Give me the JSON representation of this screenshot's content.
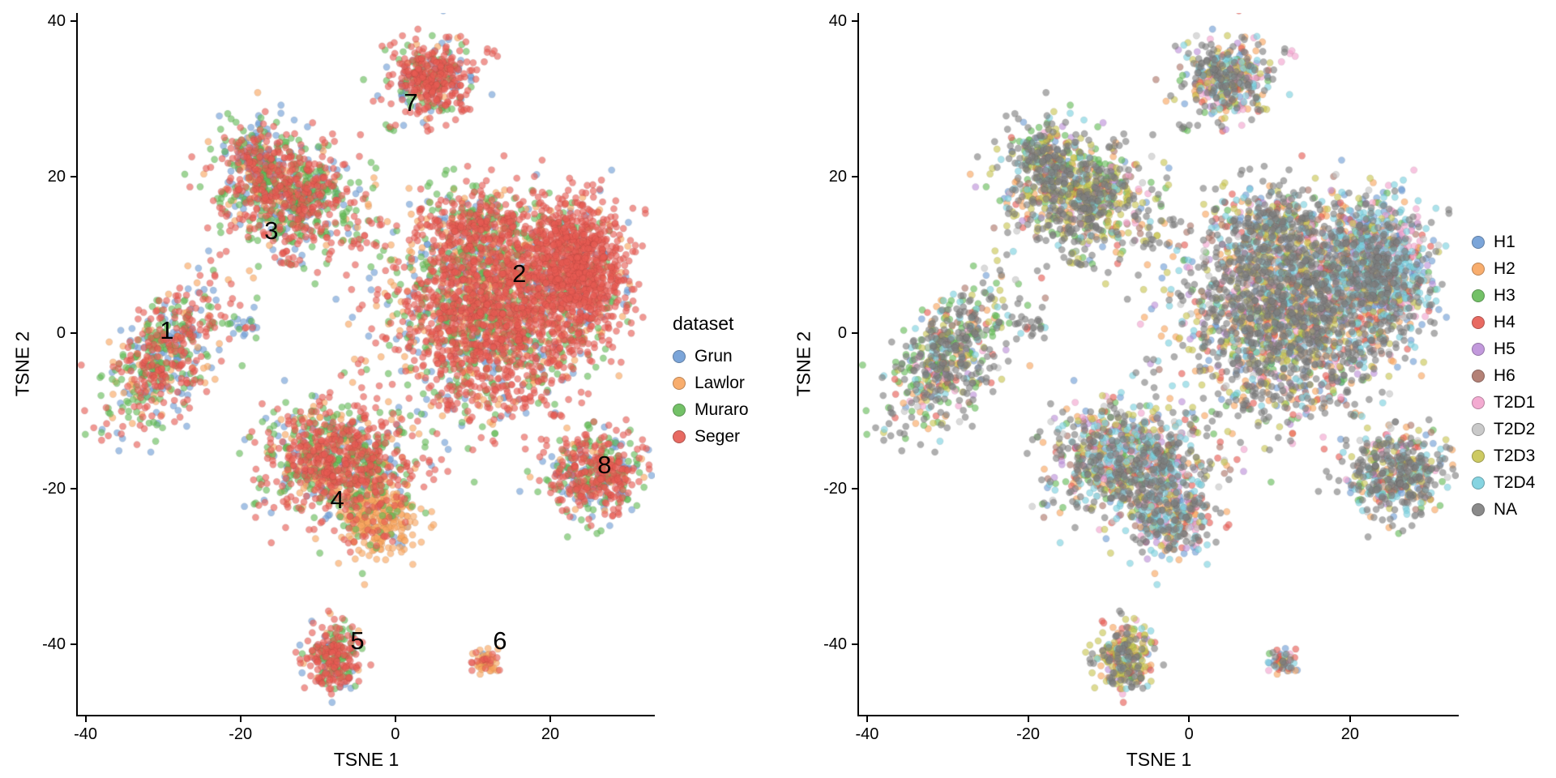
{
  "figure": {
    "background": "#FFFFFF"
  },
  "chart_data": [
    {
      "type": "scatter",
      "title": "",
      "xlabel": "TSNE 1",
      "ylabel": "TSNE 2",
      "xlim": [
        -41,
        33.5
      ],
      "ylim": [
        -49,
        41
      ],
      "xticks": [
        -40,
        -20,
        0,
        20
      ],
      "yticks": [
        -40,
        -20,
        0,
        20,
        40
      ],
      "grid": false,
      "theme": "classic",
      "color_by": "dataset",
      "legend": {
        "title": "dataset",
        "position": "right",
        "entries": [
          {
            "label": "Grun",
            "color": "#6D9CD5"
          },
          {
            "label": "Lawlor",
            "color": "#F8A55E"
          },
          {
            "label": "Muraro",
            "color": "#64BB57"
          },
          {
            "label": "Seger",
            "color": "#E65A52"
          }
        ]
      },
      "annotations": [
        {
          "text": "1",
          "x": -29.5,
          "y": 0.3
        },
        {
          "text": "2",
          "x": 16,
          "y": 7.5
        },
        {
          "text": "3",
          "x": -16,
          "y": 13
        },
        {
          "text": "4",
          "x": -7.5,
          "y": -21.5
        },
        {
          "text": "5",
          "x": -4.9,
          "y": -39.5
        },
        {
          "text": "6",
          "x": 13.5,
          "y": -39.5
        },
        {
          "text": "7",
          "x": 2.0,
          "y": 29.5
        },
        {
          "text": "8",
          "x": 27,
          "y": -17
        }
      ]
    },
    {
      "type": "scatter",
      "title": "",
      "xlabel": "TSNE 1",
      "ylabel": "TSNE 2",
      "xlim": [
        -41,
        33.5
      ],
      "ylim": [
        -49,
        41
      ],
      "xticks": [
        -40,
        -20,
        0,
        20
      ],
      "yticks": [
        -40,
        -20,
        0,
        20,
        40
      ],
      "grid": false,
      "theme": "classic",
      "color_by": "donor",
      "legend": {
        "title": "",
        "position": "right",
        "entries": [
          {
            "label": "H1",
            "color": "#6D9CD5"
          },
          {
            "label": "H2",
            "color": "#F8A55E"
          },
          {
            "label": "H3",
            "color": "#64BB57"
          },
          {
            "label": "H4",
            "color": "#E65A52"
          },
          {
            "label": "H5",
            "color": "#BC8ED9"
          },
          {
            "label": "H6",
            "color": "#AC7468"
          },
          {
            "label": "T2D1",
            "color": "#F2A2CD"
          },
          {
            "label": "T2D2",
            "color": "#C4C4C4"
          },
          {
            "label": "T2D3",
            "color": "#C8C551"
          },
          {
            "label": "T2D4",
            "color": "#79D0DE"
          },
          {
            "label": "NA",
            "color": "#7E7E7E"
          }
        ]
      },
      "annotations": []
    }
  ],
  "points": {
    "seed": 20170821,
    "radius": 4.2,
    "alpha": 0.62,
    "blobs": [
      {
        "n": 550,
        "x": -30,
        "y": -3,
        "sx": 3.2,
        "sy": 4.8,
        "tilt": 0.45,
        "dataset_mix": {
          "Grun": 0.22,
          "Lawlor": 0.13,
          "Muraro": 0.28,
          "Seger": 0.37
        },
        "donor_mix": {
          "NA": 0.4,
          "H3": 0.19,
          "T2D3": 0.08,
          "T2D4": 0.07,
          "H2": 0.06,
          "H4": 0.06,
          "H1": 0.04,
          "T2D2": 0.04,
          "T2D1": 0.02,
          "H5": 0.02,
          "H6": 0.02
        }
      },
      {
        "n": 2200,
        "x": 12.5,
        "y": 3.5,
        "sx": 6.5,
        "sy": 6.5,
        "tilt": 0,
        "dataset_mix": {
          "Seger": 0.52,
          "Muraro": 0.2,
          "Lawlor": 0.17,
          "Grun": 0.11
        },
        "donor_mix": {
          "NA": 0.4,
          "T2D3": 0.11,
          "H2": 0.1,
          "T2D4": 0.07,
          "H1": 0.06,
          "H4": 0.06,
          "H3": 0.05,
          "T2D1": 0.04,
          "T2D2": 0.04,
          "H6": 0.04,
          "H5": 0.03
        }
      },
      {
        "n": 900,
        "x": 23.5,
        "y": 8.5,
        "sx": 3.2,
        "sy": 4.2,
        "tilt": 0,
        "dataset_mix": {
          "Seger": 0.85,
          "Grun": 0.06,
          "Muraro": 0.05,
          "Lawlor": 0.04
        },
        "donor_mix": {
          "T2D4": 0.24,
          "NA": 0.2,
          "H1": 0.15,
          "T2D1": 0.08,
          "H2": 0.08,
          "T2D2": 0.06,
          "H4": 0.06,
          "T2D3": 0.05,
          "H5": 0.03,
          "H3": 0.03,
          "H6": 0.02
        }
      },
      {
        "n": 250,
        "x": 10,
        "y": 13.5,
        "sx": 4.0,
        "sy": 2.6,
        "tilt": 0,
        "dataset_mix": {
          "Seger": 0.5,
          "Muraro": 0.25,
          "Lawlor": 0.15,
          "Grun": 0.1
        },
        "donor_mix": {
          "NA": 0.38,
          "H2": 0.12,
          "T2D3": 0.1,
          "T2D4": 0.08,
          "H1": 0.07,
          "H4": 0.06,
          "H3": 0.06,
          "T2D1": 0.05,
          "H6": 0.04,
          "T2D2": 0.02,
          "H5": 0.02
        }
      },
      {
        "n": 45,
        "x": 16,
        "y": -7,
        "sx": 4.0,
        "sy": 2.6,
        "tilt": 0,
        "dataset_mix": {
          "Seger": 0.7,
          "Muraro": 0.15,
          "Lawlor": 0.1,
          "Grun": 0.05
        },
        "donor_mix": {
          "NA": 0.5,
          "H4": 0.1,
          "H2": 0.1,
          "T2D4": 0.1,
          "T2D3": 0.1,
          "H3": 0.1
        }
      },
      {
        "n": 850,
        "x": -14,
        "y": 18,
        "sx": 4.2,
        "sy": 3.8,
        "tilt": -0.2,
        "dataset_mix": {
          "Seger": 0.42,
          "Muraro": 0.3,
          "Grun": 0.18,
          "Lawlor": 0.1
        },
        "donor_mix": {
          "NA": 0.33,
          "T2D3": 0.2,
          "H3": 0.14,
          "H2": 0.08,
          "H6": 0.05,
          "T2D4": 0.05,
          "H1": 0.04,
          "H4": 0.03,
          "T2D1": 0.03,
          "H5": 0.03,
          "T2D2": 0.02
        }
      },
      {
        "n": 120,
        "x": -18,
        "y": 22.5,
        "sx": 2.0,
        "sy": 2.0,
        "tilt": 0,
        "dataset_mix": {
          "Grun": 0.4,
          "Seger": 0.3,
          "Muraro": 0.3
        },
        "donor_mix": {
          "NA": 0.5,
          "H3": 0.15,
          "T2D3": 0.12,
          "T2D4": 0.08,
          "H1": 0.05,
          "H2": 0.05,
          "H4": 0.05
        }
      },
      {
        "n": 950,
        "x": -7.5,
        "y": -16.5,
        "sx": 4.8,
        "sy": 3.6,
        "tilt": 0,
        "dataset_mix": {
          "Seger": 0.42,
          "Muraro": 0.26,
          "Lawlor": 0.16,
          "Grun": 0.16
        },
        "donor_mix": {
          "NA": 0.26,
          "T2D4": 0.14,
          "H4": 0.09,
          "T2D3": 0.09,
          "H3": 0.08,
          "H2": 0.07,
          "H1": 0.06,
          "H6": 0.06,
          "H5": 0.05,
          "T2D1": 0.05,
          "T2D2": 0.05
        }
      },
      {
        "n": 320,
        "x": -2,
        "y": -24,
        "sx": 2.6,
        "sy": 2.4,
        "tilt": 0,
        "dataset_mix": {
          "Lawlor": 0.78,
          "Seger": 0.12,
          "Muraro": 0.06,
          "Grun": 0.04
        },
        "donor_mix": {
          "NA": 0.28,
          "T2D4": 0.2,
          "H2": 0.1,
          "H4": 0.08,
          "H1": 0.07,
          "T2D3": 0.07,
          "H5": 0.06,
          "H6": 0.05,
          "T2D1": 0.05,
          "T2D2": 0.04
        }
      },
      {
        "n": 260,
        "x": -8,
        "y": -41.5,
        "sx": 1.7,
        "sy": 2.3,
        "tilt": 0,
        "dataset_mix": {
          "Seger": 0.58,
          "Muraro": 0.27,
          "Grun": 0.1,
          "Lawlor": 0.05
        },
        "donor_mix": {
          "NA": 0.29,
          "T2D3": 0.27,
          "H4": 0.12,
          "H2": 0.1,
          "T2D4": 0.06,
          "H3": 0.05,
          "H1": 0.04,
          "T2D1": 0.03,
          "H6": 0.02,
          "H5": 0.01,
          "T2D2": 0.01
        }
      },
      {
        "n": 55,
        "x": 11.5,
        "y": -42,
        "sx": 1.0,
        "sy": 0.8,
        "tilt": 0,
        "dataset_mix": {
          "Lawlor": 0.75,
          "Seger": 0.2,
          "Grun": 0.05
        },
        "donor_mix": {
          "NA": 0.33,
          "H2": 0.2,
          "H1": 0.15,
          "H4": 0.1,
          "T2D4": 0.08,
          "T2D3": 0.06,
          "T2D1": 0.04,
          "H3": 0.04
        }
      },
      {
        "n": 420,
        "x": 4.5,
        "y": 32.5,
        "sx": 2.7,
        "sy": 2.5,
        "tilt": 0,
        "dataset_mix": {
          "Seger": 0.68,
          "Muraro": 0.17,
          "Grun": 0.1,
          "Lawlor": 0.05
        },
        "donor_mix": {
          "NA": 0.29,
          "T2D4": 0.14,
          "H2": 0.12,
          "T2D3": 0.1,
          "H3": 0.07,
          "T2D1": 0.06,
          "H1": 0.06,
          "H4": 0.05,
          "H5": 0.04,
          "H6": 0.04,
          "T2D2": 0.03
        }
      },
      {
        "n": 480,
        "x": 25.5,
        "y": -18,
        "sx": 3.0,
        "sy": 2.7,
        "tilt": 0,
        "dataset_mix": {
          "Seger": 0.52,
          "Muraro": 0.22,
          "Grun": 0.16,
          "Lawlor": 0.1
        },
        "donor_mix": {
          "NA": 0.4,
          "T2D4": 0.1,
          "H3": 0.08,
          "H2": 0.08,
          "T2D3": 0.08,
          "H4": 0.07,
          "H1": 0.05,
          "T2D2": 0.04,
          "H6": 0.04,
          "T2D1": 0.03,
          "H5": 0.03
        }
      },
      {
        "n": 22,
        "x": -19.5,
        "y": 0.5,
        "sx": 0.9,
        "sy": 0.9,
        "tilt": 0,
        "dataset_mix": {
          "Grun": 0.5,
          "Seger": 0.25,
          "Muraro": 0.25
        },
        "donor_mix": {
          "NA": 0.5,
          "H3": 0.2,
          "T2D4": 0.15,
          "H4": 0.15
        }
      },
      {
        "n": 10,
        "x": -5,
        "y": 12,
        "sx": 0.8,
        "sy": 0.6,
        "tilt": 0,
        "dataset_mix": {
          "Seger": 0.8,
          "Muraro": 0.2
        },
        "donor_mix": {
          "NA": 0.6,
          "T2D3": 0.4
        }
      },
      {
        "n": 10,
        "x": 7.5,
        "y": -9.5,
        "sx": 0.8,
        "sy": 0.8,
        "tilt": 0,
        "dataset_mix": {
          "Seger": 0.6,
          "Muraro": 0.4
        },
        "donor_mix": {
          "NA": 0.7,
          "H4": 0.3
        }
      },
      {
        "n": 4,
        "x": 12.5,
        "y": 36,
        "sx": 0.5,
        "sy": 0.5,
        "tilt": 0,
        "dataset_mix": {
          "Seger": 1
        },
        "donor_mix": {
          "NA": 0.5,
          "T2D1": 0.5
        }
      },
      {
        "n": 6,
        "x": -0.5,
        "y": 26.5,
        "sx": 0.7,
        "sy": 0.5,
        "tilt": 0,
        "dataset_mix": {
          "Seger": 0.6,
          "Muraro": 0.4
        },
        "donor_mix": {
          "NA": 0.6,
          "H3": 0.4
        }
      },
      {
        "n": 8,
        "x": -13.5,
        "y": 9,
        "sx": 0.7,
        "sy": 0.7,
        "tilt": 0,
        "dataset_mix": {
          "Seger": 0.5,
          "Muraro": 0.5
        },
        "donor_mix": {
          "NA": 0.5,
          "T2D3": 0.5
        }
      }
    ]
  }
}
